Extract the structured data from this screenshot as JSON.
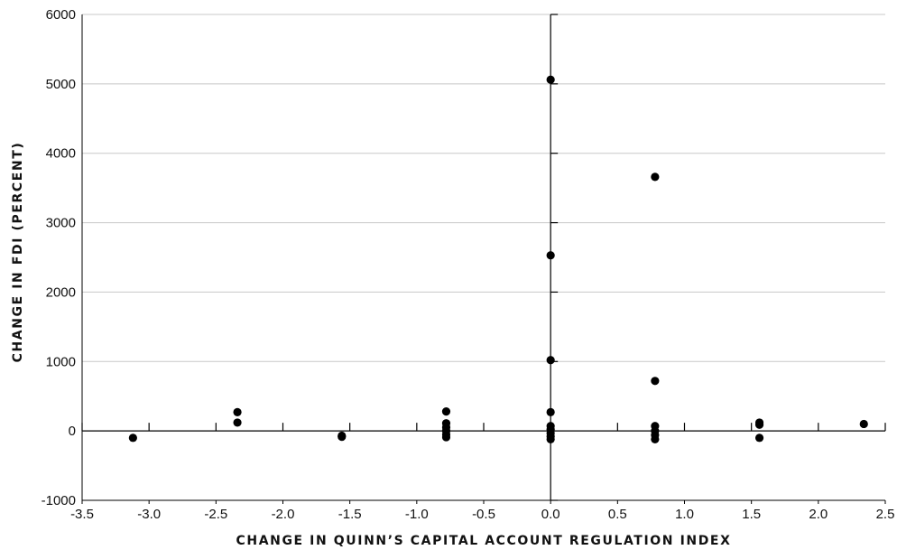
{
  "chart_data": {
    "type": "scatter",
    "title": "",
    "xlabel": "CHANGE IN QUINN’S CAPITAL ACCOUNT REGULATION INDEX",
    "ylabel": "CHANGE IN FDI (PERCENT)",
    "xlim": [
      -3.5,
      2.5
    ],
    "ylim": [
      -1000,
      6000
    ],
    "x_ticks": [
      "-3.5",
      "-3.0",
      "-2.5",
      "-2.0",
      "-1.5",
      "-1.0",
      "-0.5",
      "0.0",
      "0.5",
      "1.0",
      "1.5",
      "2.0",
      "2.5"
    ],
    "y_ticks": [
      "-1000",
      "0",
      "1000",
      "2000",
      "3000",
      "4000",
      "5000",
      "6000"
    ],
    "grid": "horizontal",
    "point_color": "#000000",
    "gridline_color": "#c8c8c8",
    "points": [
      {
        "x": -3.12,
        "y": -100
      },
      {
        "x": -2.34,
        "y": 270
      },
      {
        "x": -2.34,
        "y": 120
      },
      {
        "x": -1.56,
        "y": -70
      },
      {
        "x": -1.56,
        "y": -85
      },
      {
        "x": -0.78,
        "y": 280
      },
      {
        "x": -0.78,
        "y": 110
      },
      {
        "x": -0.78,
        "y": 50
      },
      {
        "x": -0.78,
        "y": 0
      },
      {
        "x": -0.78,
        "y": -50
      },
      {
        "x": -0.78,
        "y": -90
      },
      {
        "x": 0.0,
        "y": 5060
      },
      {
        "x": 0.0,
        "y": 2530
      },
      {
        "x": 0.0,
        "y": 1020
      },
      {
        "x": 0.0,
        "y": 270
      },
      {
        "x": 0.0,
        "y": 70
      },
      {
        "x": 0.0,
        "y": 20
      },
      {
        "x": 0.0,
        "y": -30
      },
      {
        "x": 0.0,
        "y": -80
      },
      {
        "x": 0.0,
        "y": -120
      },
      {
        "x": 0.78,
        "y": 3660
      },
      {
        "x": 0.78,
        "y": 720
      },
      {
        "x": 0.78,
        "y": 70
      },
      {
        "x": 0.78,
        "y": 0
      },
      {
        "x": 0.78,
        "y": -60
      },
      {
        "x": 0.78,
        "y": -120
      },
      {
        "x": 1.56,
        "y": 120
      },
      {
        "x": 1.56,
        "y": 90
      },
      {
        "x": 1.56,
        "y": -100
      },
      {
        "x": 2.34,
        "y": 100
      }
    ]
  }
}
